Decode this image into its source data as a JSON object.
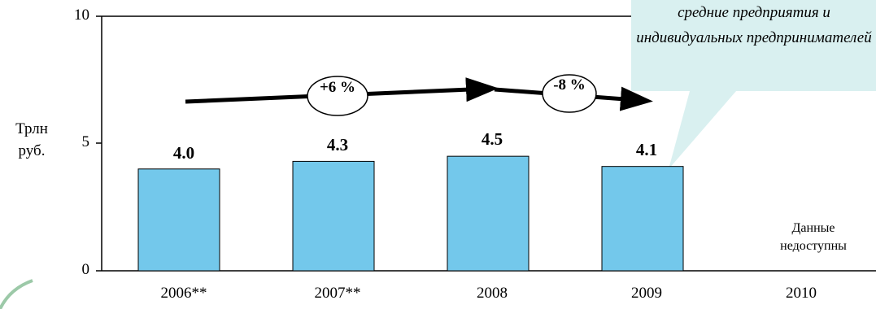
{
  "chart_data": {
    "type": "bar",
    "categories": [
      "2006**",
      "2007**",
      "2008",
      "2009",
      "2010"
    ],
    "values": [
      4.0,
      4.3,
      4.5,
      4.1,
      null
    ],
    "data_labels": [
      "4.0",
      "4.3",
      "4.5",
      "4.1",
      ""
    ],
    "ylabel": "Трлн руб.",
    "yticks": [
      "0",
      "5",
      "10"
    ],
    "ylim": [
      0,
      10
    ],
    "grid": false,
    "bar_color": "#73C8EB",
    "callout_color": "#D9F0F0",
    "annotations": {
      "callout": "средние предприятия и индивидуальных предпринимателей",
      "no_data": "Данные недоступны",
      "growth": [
        {
          "label": "+6 %",
          "from": "2006**",
          "to": "2008"
        },
        {
          "label": "-8 %",
          "from": "2008",
          "to": "2009"
        }
      ]
    }
  }
}
